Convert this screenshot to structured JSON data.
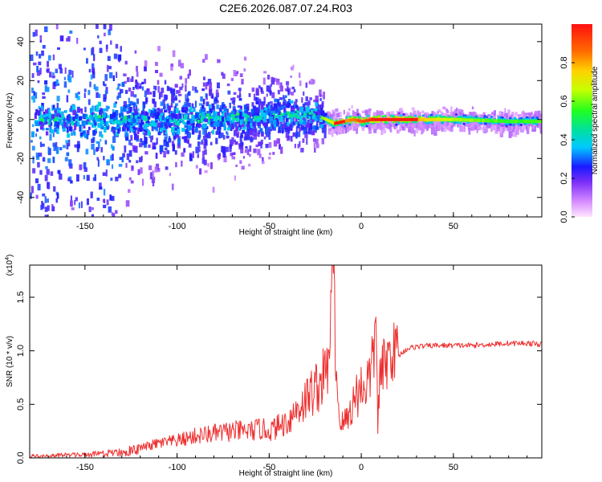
{
  "title": "C2E6.2026.087.07.24.R03",
  "colors": {
    "snr_line": "#ee3030",
    "spec_core_low": "#7b2ff7",
    "spec_core_mid": "#00c8ff",
    "spec_core_high": "#ff2020"
  },
  "chart_data": [
    {
      "type": "heatmap",
      "name": "spectrogram",
      "title": "",
      "xlabel": "Height of straight line (km)",
      "ylabel": "Frequency (Hz)",
      "xlim": [
        -180,
        98
      ],
      "ylim": [
        -50,
        49
      ],
      "xticks": [
        -150,
        -100,
        -50,
        0,
        50
      ],
      "xtick_labels": [
        "-150",
        "-100",
        "-50",
        "0",
        "50"
      ],
      "yticks": [
        -40,
        -20,
        0,
        20,
        40
      ],
      "ytick_labels": [
        "-40",
        "-20",
        "0",
        "20",
        "40"
      ],
      "ridge": {
        "description": "Dominant spectral line near 0 Hz; broad scatter at low heights narrowing above -20 km",
        "x": [
          -180,
          -150,
          -120,
          -100,
          -80,
          -60,
          -45,
          -35,
          -22,
          -15,
          -5,
          0,
          5,
          20,
          50,
          80,
          98
        ],
        "center_hz": [
          0,
          0,
          0.5,
          0,
          1,
          1,
          3,
          3,
          1,
          -2,
          0,
          -1,
          0,
          0,
          0,
          -1,
          -1
        ],
        "amplitude": [
          0.15,
          0.2,
          0.25,
          0.3,
          0.35,
          0.4,
          0.5,
          0.55,
          0.6,
          0.75,
          0.85,
          0.9,
          0.95,
          0.85,
          0.65,
          0.55,
          0.6
        ]
      },
      "colorbar": {
        "label": "Normalized spectral amplitude",
        "ticks": [
          0.0,
          0.2,
          0.4,
          0.6,
          0.8
        ],
        "tick_labels": [
          "0.0",
          "0.2",
          "0.4",
          "0.6",
          "0.8"
        ],
        "range": [
          0,
          1
        ]
      }
    },
    {
      "type": "line",
      "name": "snr",
      "title": "",
      "xlabel": "Height of straight line (km)",
      "ylabel": "SNR (10 * v/v)",
      "multiplier": "(x10",
      "multiplier_exp": "4",
      "multiplier_close": ")",
      "xlim": [
        -180,
        98
      ],
      "ylim": [
        0,
        1.8
      ],
      "xticks": [
        -150,
        -100,
        -50,
        0,
        50
      ],
      "xtick_labels": [
        "-150",
        "-100",
        "-50",
        "0",
        "50"
      ],
      "yticks": [
        0.0,
        0.5,
        1.0,
        1.5
      ],
      "ytick_labels": [
        "0.0",
        "0.5",
        "1.0",
        "1.5"
      ],
      "series": [
        {
          "name": "SNR",
          "x": [
            -180,
            -170,
            -160,
            -150,
            -140,
            -130,
            -120,
            -110,
            -100,
            -90,
            -80,
            -70,
            -60,
            -55,
            -50,
            -45,
            -40,
            -35,
            -30,
            -25,
            -22,
            -20,
            -18,
            -16,
            -15,
            -14,
            -13,
            -12,
            -11,
            -10,
            -8,
            -5,
            -3,
            0,
            3,
            5,
            7,
            8,
            9,
            10,
            12,
            14,
            16,
            18,
            20,
            22,
            25,
            30,
            40,
            50,
            60,
            70,
            80,
            90,
            98
          ],
          "y": [
            0.02,
            0.02,
            0.03,
            0.03,
            0.04,
            0.06,
            0.08,
            0.12,
            0.14,
            0.18,
            0.2,
            0.22,
            0.22,
            0.24,
            0.22,
            0.26,
            0.3,
            0.4,
            0.48,
            0.58,
            0.62,
            0.7,
            0.75,
            1.48,
            1.82,
            0.9,
            0.55,
            0.35,
            0.3,
            0.28,
            0.32,
            0.42,
            0.52,
            0.58,
            0.62,
            0.7,
            0.9,
            1.28,
            0.3,
            0.62,
            0.76,
            0.82,
            0.9,
            0.92,
            0.95,
            0.98,
            1.02,
            1.04,
            1.05,
            1.05,
            1.05,
            1.06,
            1.07,
            1.07,
            1.06
          ]
        }
      ]
    }
  ]
}
